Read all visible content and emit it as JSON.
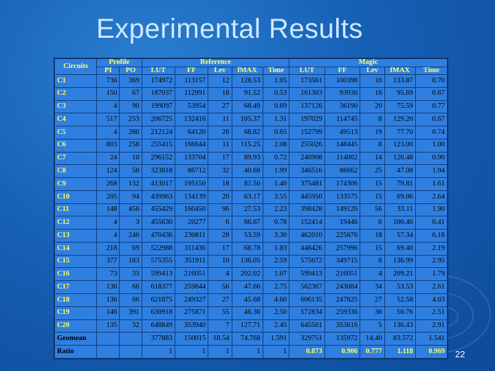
{
  "slide": {
    "title": "Experimental Results",
    "page_number": "22"
  },
  "table": {
    "group_headers": {
      "circuits": "Circuits",
      "profile": "Profile",
      "reference": "Reference",
      "magic": "Magic"
    },
    "columns": [
      "PI",
      "PO",
      "LUT",
      "FF",
      "Lev",
      "fMAX",
      "Time",
      "LUT",
      "FF",
      "Lev",
      "fMAX",
      "Time"
    ],
    "rows": [
      [
        "C1",
        "736",
        "369",
        "174972",
        "113157",
        "12",
        "128.53",
        "1.05",
        "173561",
        "100398",
        "10",
        "133.87",
        "0.70"
      ],
      [
        "C2",
        "150",
        "67",
        "187037",
        "112991",
        "18",
        "91.52",
        "0.53",
        "161303",
        "93930",
        "16",
        "95.69",
        "0.67"
      ],
      [
        "C3",
        "4",
        "90",
        "199097",
        "53954",
        "27",
        "68.49",
        "0.69",
        "137126",
        "36190",
        "20",
        "75.59",
        "0.77"
      ],
      [
        "C4",
        "517",
        "253",
        "206725",
        "132416",
        "11",
        "105.37",
        "1.31",
        "197029",
        "114745",
        "8",
        "129.20",
        "0.67"
      ],
      [
        "C5",
        "4",
        "280",
        "212124",
        "64120",
        "26",
        "68.82",
        "0.65",
        "152799",
        "49513",
        "19",
        "77.70",
        "0.74"
      ],
      [
        "C6",
        "803",
        "258",
        "255415",
        "166644",
        "11",
        "115.25",
        "2.08",
        "255026",
        "148445",
        "8",
        "123.00",
        "1.00"
      ],
      [
        "C7",
        "24",
        "10",
        "296152",
        "133704",
        "17",
        "89.93",
        "0.72",
        "246908",
        "114002",
        "14",
        "120.48",
        "0.90"
      ],
      [
        "C8",
        "124",
        "58",
        "323818",
        "86712",
        "32",
        "40.68",
        "1.99",
        "346516",
        "86662",
        "25",
        "47.08",
        "1.94"
      ],
      [
        "C9",
        "268",
        "132",
        "413017",
        "195150",
        "18",
        "81.50",
        "1.40",
        "375481",
        "174306",
        "15",
        "79.81",
        "1.61"
      ],
      [
        "C10",
        "205",
        "94",
        "439963",
        "134139",
        "20",
        "63.17",
        "3.55",
        "445950",
        "133575",
        "15",
        "69.06",
        "2.64"
      ],
      [
        "C11",
        "148",
        "456",
        "455429",
        "160450",
        "96",
        "27.53",
        "2.23",
        "398428",
        "149126",
        "56",
        "33.11",
        "1.90"
      ],
      [
        "C12",
        "4",
        "3",
        "455630",
        "20277",
        "6",
        "66.67",
        "0.78",
        "152414",
        "19446",
        "6",
        "100.40",
        "0.41"
      ],
      [
        "C13",
        "4",
        "240",
        "470436",
        "230811",
        "28",
        "53.59",
        "3.30",
        "462010",
        "225676",
        "18",
        "57.34",
        "6.18"
      ],
      [
        "C14",
        "218",
        "69",
        "522988",
        "311436",
        "17",
        "68.78",
        "1.83",
        "448426",
        "257996",
        "15",
        "69.40",
        "2.19"
      ],
      [
        "C15",
        "377",
        "183",
        "575355",
        "351911",
        "10",
        "136.05",
        "2.59",
        "575672",
        "349715",
        "8",
        "136.99",
        "2.95"
      ],
      [
        "C16",
        "73",
        "33",
        "599413",
        "216051",
        "4",
        "202.02",
        "1.07",
        "599413",
        "216051",
        "4",
        "209.21",
        "1.79"
      ],
      [
        "C17",
        "136",
        "66",
        "618377",
        "259844",
        "56",
        "47.66",
        "2.75",
        "562367",
        "243084",
        "34",
        "53.53",
        "2.61"
      ],
      [
        "C18",
        "136",
        "66",
        "621875",
        "249327",
        "27",
        "45.68",
        "4.60",
        "606135",
        "247825",
        "27",
        "52.58",
        "4.03"
      ],
      [
        "C19",
        "146",
        "391",
        "630918",
        "275871",
        "55",
        "46.36",
        "2.50",
        "572834",
        "259336",
        "36",
        "50.76",
        "2.51"
      ],
      [
        "C20",
        "135",
        "32",
        "648849",
        "353940",
        "7",
        "127.71",
        "2.45",
        "645501",
        "353616",
        "5",
        "136.43",
        "2.91"
      ]
    ],
    "geomean": {
      "label": "Geomean",
      "values": [
        "377883",
        "150015",
        "18.54",
        "74.768",
        "1.591",
        "329751",
        "135972",
        "14.40",
        "83.572",
        "1.541"
      ]
    },
    "ratio": {
      "label": "Ratio",
      "values": [
        "1",
        "1",
        "1",
        "1",
        "1",
        "0.873",
        "0.906",
        "0.777",
        "1.118",
        "0.969"
      ]
    }
  }
}
